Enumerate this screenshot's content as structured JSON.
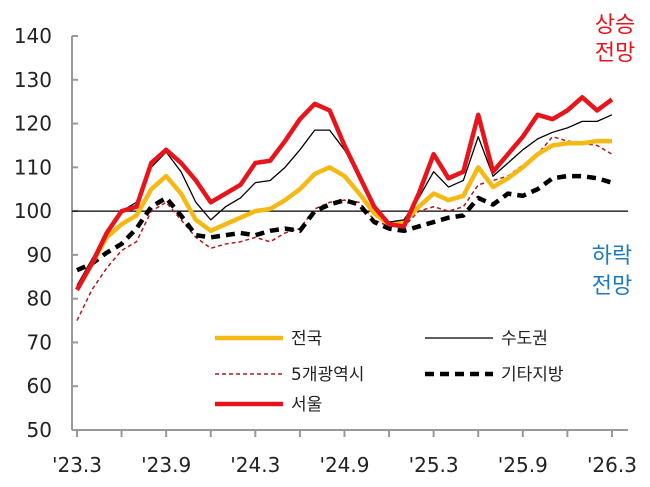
{
  "chart_data": {
    "type": "line",
    "x_tick_labels": [
      "'23.3",
      "'23.9",
      "'24.3",
      "'24.9",
      "'25.3",
      "'25.9",
      "'26.3"
    ],
    "x_range": [
      "2023-03",
      "2026-03"
    ],
    "ylim": [
      50,
      140
    ],
    "y_ticks": [
      50,
      60,
      70,
      80,
      90,
      100,
      110,
      120,
      130,
      140
    ],
    "reference_line": 100,
    "grid": false,
    "legend_placement": "bottom-center",
    "annotations": {
      "up": "상승\n전망",
      "down": "하락\n전망",
      "up_color": "#e8141b",
      "down_color": "#1f7bc0"
    },
    "series": [
      {
        "name": "전국",
        "color": "#f5b915",
        "style": "solid-thick",
        "values": [
          82,
          88,
          94,
          97,
          99,
          105,
          108,
          104,
          98,
          95.5,
          97,
          98.5,
          100,
          100.5,
          102.5,
          105,
          108.5,
          110,
          108,
          104,
          99.5,
          97,
          97.5,
          101,
          104,
          102.5,
          103.5,
          110,
          105.5,
          107.5,
          110,
          113,
          115,
          115.5,
          115.5,
          116,
          116
        ]
      },
      {
        "name": "수도권",
        "color": "#000000",
        "style": "solid-thin",
        "values": [
          83,
          89,
          95,
          100,
          102,
          110,
          113.5,
          109,
          102,
          98,
          101,
          103,
          106.5,
          107,
          110,
          114,
          118.5,
          118.5,
          114,
          108,
          101,
          97.5,
          98,
          103,
          109,
          105.5,
          107,
          117,
          108,
          111,
          114,
          116.5,
          118,
          119,
          120.5,
          120.5,
          122
        ]
      },
      {
        "name": "5개광역시",
        "color": "#b01a1a",
        "style": "dashed-thin",
        "values": [
          75,
          82,
          87,
          91,
          93,
          100,
          102,
          98,
          94,
          91.5,
          92.5,
          93,
          94,
          93,
          95,
          96,
          100.5,
          102,
          102.5,
          102,
          98,
          96.5,
          96.5,
          100,
          101,
          100,
          101,
          106,
          107,
          108,
          110.5,
          113,
          117,
          116,
          115.5,
          115,
          113
        ]
      },
      {
        "name": "기타지방",
        "color": "#000000",
        "style": "dashed-thick",
        "values": [
          86.5,
          88,
          90.5,
          92.5,
          96,
          101,
          103,
          99,
          94.5,
          94,
          94.5,
          95,
          94.5,
          95.5,
          96,
          95.5,
          100,
          101.5,
          102.5,
          101.5,
          97.5,
          96,
          95.5,
          96.5,
          97.5,
          98.5,
          99,
          103,
          101.5,
          104,
          103.5,
          105,
          107.5,
          108,
          108,
          107.5,
          106.5
        ]
      },
      {
        "name": "서울",
        "color": "#e8141b",
        "style": "solid-thick",
        "values": [
          82,
          88,
          95,
          100,
          101,
          111,
          114,
          111,
          107,
          102,
          104,
          106,
          111,
          111.5,
          116,
          121,
          124.5,
          123,
          115,
          108,
          101,
          97,
          96.5,
          104,
          113,
          107.5,
          109,
          122,
          109,
          113,
          117,
          122,
          121,
          123,
          126,
          123,
          125.5
        ]
      }
    ]
  }
}
